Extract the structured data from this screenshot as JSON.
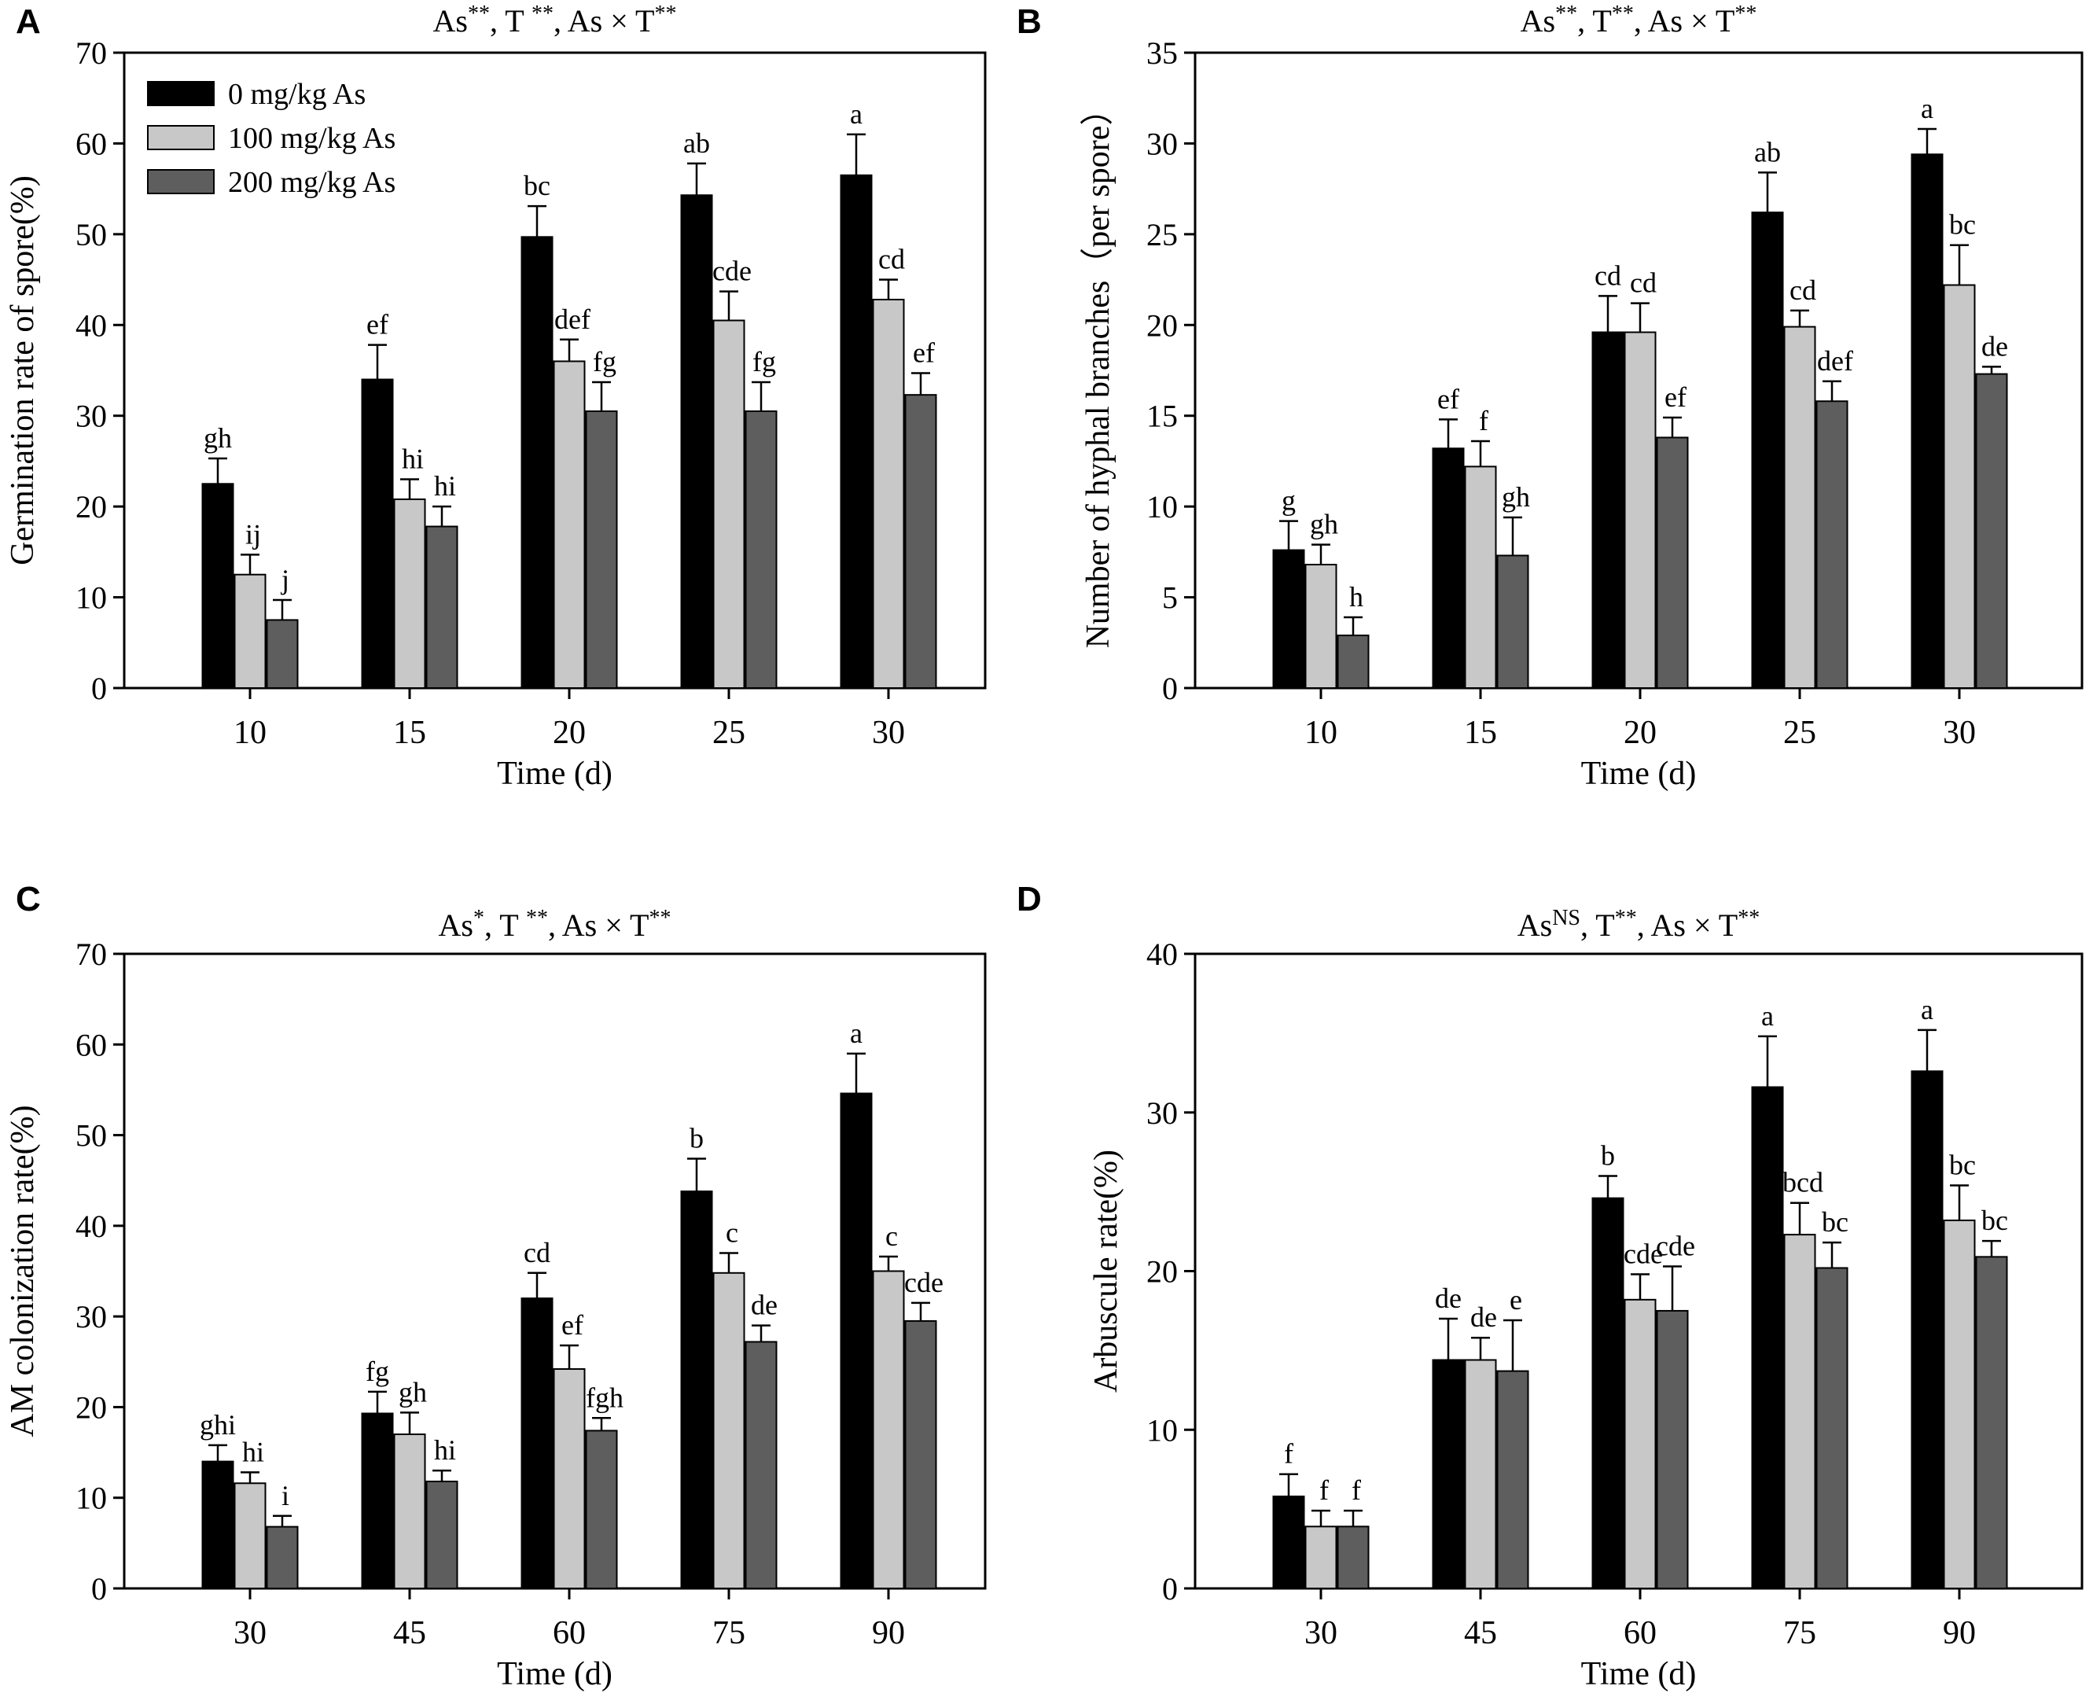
{
  "colors": {
    "series": [
      "#000000",
      "#c8c8c8",
      "#5e5e5e"
    ],
    "axis": "#000000",
    "background": "#ffffff"
  },
  "legend": {
    "entries": [
      "0 mg/kg As",
      "100 mg/kg As",
      "200 mg/kg As"
    ],
    "placement": "top-left"
  },
  "chart_data": [
    {
      "panel": "A",
      "type": "bar",
      "title_parts": [
        "As",
        "**",
        ", T ",
        "**",
        ", As × T",
        "**"
      ],
      "xlabel": "Time (d)",
      "ylabel": "Germination rate of spore(%)",
      "categories": [
        "10",
        "15",
        "20",
        "25",
        "30"
      ],
      "ylim": [
        0,
        70
      ],
      "yticks": [
        0,
        10,
        20,
        30,
        40,
        50,
        60,
        70
      ],
      "series": [
        {
          "name": "0 mg/kg As",
          "values": [
            22.5,
            34,
            49.7,
            54.3,
            56.5
          ],
          "errors": [
            2.8,
            3.8,
            3.4,
            3.5,
            4.5
          ],
          "labels": [
            "gh",
            "ef",
            "bc",
            "ab",
            "a"
          ]
        },
        {
          "name": "100 mg/kg As",
          "values": [
            12.5,
            20.8,
            36,
            40.5,
            42.8
          ],
          "errors": [
            2.2,
            2.2,
            2.4,
            3.2,
            2.2
          ],
          "labels": [
            "ij",
            "hi",
            "def",
            "cde",
            "cd"
          ]
        },
        {
          "name": "200 mg/kg As",
          "values": [
            7.5,
            17.8,
            30.5,
            30.5,
            32.3
          ],
          "errors": [
            2.2,
            2.2,
            3.2,
            3.2,
            2.4
          ],
          "labels": [
            "j",
            "hi",
            "fg",
            "fg",
            "ef"
          ]
        }
      ]
    },
    {
      "panel": "B",
      "type": "bar",
      "title_parts": [
        "As",
        "**",
        ", T",
        "**",
        ", As × T",
        "**"
      ],
      "xlabel": "Time (d)",
      "ylabel": "Number of hyphal branches（per spore）",
      "categories": [
        "10",
        "15",
        "20",
        "25",
        "30"
      ],
      "ylim": [
        0,
        35
      ],
      "yticks": [
        0,
        5,
        10,
        15,
        20,
        25,
        30,
        35
      ],
      "series": [
        {
          "name": "0 mg/kg As",
          "values": [
            7.6,
            13.2,
            19.6,
            26.2,
            29.4
          ],
          "errors": [
            1.6,
            1.6,
            2.0,
            2.2,
            1.4
          ],
          "labels": [
            "g",
            "ef",
            "cd",
            "ab",
            "a"
          ]
        },
        {
          "name": "100 mg/kg As",
          "values": [
            6.8,
            12.2,
            19.6,
            19.9,
            22.2
          ],
          "errors": [
            1.1,
            1.4,
            1.6,
            0.9,
            2.2
          ],
          "labels": [
            "gh",
            "f",
            "cd",
            "cd",
            "bc"
          ]
        },
        {
          "name": "200 mg/kg As",
          "values": [
            2.9,
            7.3,
            13.8,
            15.8,
            17.3
          ],
          "errors": [
            1.0,
            2.1,
            1.1,
            1.1,
            0.4
          ],
          "labels": [
            "h",
            "gh",
            "ef",
            "def",
            "de"
          ]
        }
      ]
    },
    {
      "panel": "C",
      "type": "bar",
      "title_parts": [
        "As",
        "*",
        ", T ",
        "**",
        ", As × T",
        "**"
      ],
      "xlabel": "Time (d)",
      "ylabel": "AM colonization rate(%)",
      "categories": [
        "30",
        "45",
        "60",
        "75",
        "90"
      ],
      "ylim": [
        0,
        70
      ],
      "yticks": [
        0,
        10,
        20,
        30,
        40,
        50,
        60,
        70
      ],
      "series": [
        {
          "name": "0 mg/kg As",
          "values": [
            14,
            19.3,
            32,
            43.8,
            54.6
          ],
          "errors": [
            1.8,
            2.4,
            2.8,
            3.6,
            4.4
          ],
          "labels": [
            "ghi",
            "fg",
            "cd",
            "b",
            "a"
          ]
        },
        {
          "name": "100 mg/kg As",
          "values": [
            11.6,
            17,
            24.2,
            34.8,
            35
          ],
          "errors": [
            1.2,
            2.4,
            2.6,
            2.2,
            1.6
          ],
          "labels": [
            "hi",
            "gh",
            "ef",
            "c",
            "c"
          ]
        },
        {
          "name": "200 mg/kg As",
          "values": [
            6.8,
            11.8,
            17.4,
            27.2,
            29.5
          ],
          "errors": [
            1.2,
            1.2,
            1.4,
            1.8,
            2.0
          ],
          "labels": [
            "i",
            "hi",
            "fgh",
            "de",
            "cde"
          ]
        }
      ]
    },
    {
      "panel": "D",
      "type": "bar",
      "title_parts": [
        "As",
        "NS",
        ", T",
        "**",
        ", As × T",
        "**"
      ],
      "xlabel": "Time (d)",
      "ylabel": "Arbuscule rate(%)",
      "categories": [
        "30",
        "45",
        "60",
        "75",
        "90"
      ],
      "ylim": [
        0,
        40
      ],
      "yticks": [
        0,
        10,
        20,
        30,
        40
      ],
      "series": [
        {
          "name": "0 mg/kg As",
          "values": [
            5.8,
            14.4,
            24.6,
            31.6,
            32.6
          ],
          "errors": [
            1.4,
            2.6,
            1.4,
            3.2,
            2.6
          ],
          "labels": [
            "f",
            "de",
            "b",
            "a",
            "a"
          ]
        },
        {
          "name": "100 mg/kg As",
          "values": [
            3.9,
            14.4,
            18.2,
            22.3,
            23.2
          ],
          "errors": [
            1.0,
            1.4,
            1.6,
            2.0,
            2.2
          ],
          "labels": [
            "f",
            "de",
            "cde",
            "bcd",
            "bc"
          ]
        },
        {
          "name": "200 mg/kg As",
          "values": [
            3.9,
            13.7,
            17.5,
            20.2,
            20.9
          ],
          "errors": [
            1.0,
            3.2,
            2.8,
            1.6,
            1.0
          ],
          "labels": [
            "f",
            "e",
            "cde",
            "bc",
            "bc"
          ]
        }
      ]
    }
  ]
}
